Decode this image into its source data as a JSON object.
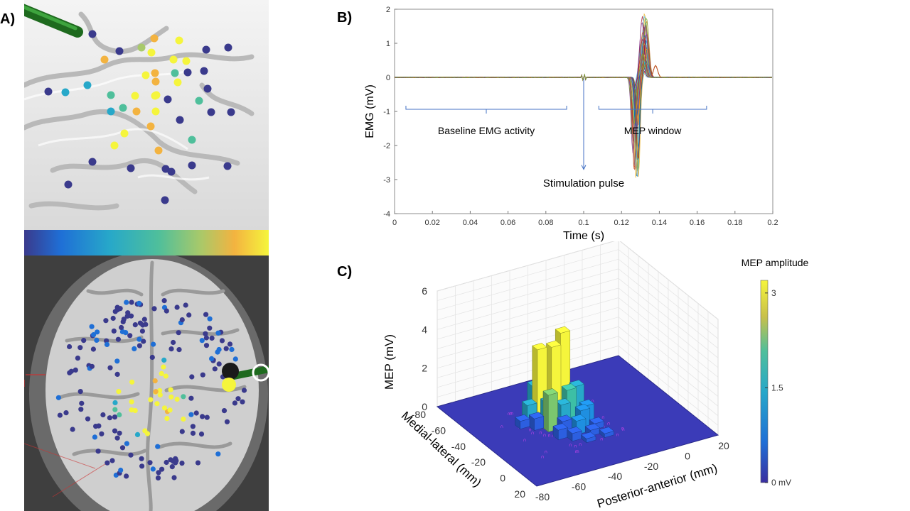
{
  "panels": {
    "a_label": "A)",
    "b_label": "B)",
    "c_label": "C)"
  },
  "panel_a": {
    "colors": {
      "background_top": "#f2f2f2",
      "background_bottom": "#3f3f3f",
      "colormap": [
        "#3a3a8c",
        "#1f6fd6",
        "#27a8c9",
        "#4fbf9b",
        "#a8c96a",
        "#f3b340",
        "#f5f53c"
      ],
      "coil_handle": "#2f7f2f"
    },
    "colormap_name": "parula"
  },
  "chart_data": [
    {
      "type": "line",
      "panel": "B",
      "title": "",
      "xlabel": "Time (s)",
      "ylabel": "EMG (mV)",
      "xlim": [
        0,
        0.2
      ],
      "ylim": [
        -4,
        2
      ],
      "xticks": [
        0,
        0.02,
        0.04,
        0.06,
        0.08,
        0.1,
        0.12,
        0.14,
        0.16,
        0.18,
        0.2
      ],
      "xtick_labels": [
        "0",
        "0.02",
        "0.04",
        "0.06",
        "0.08",
        "0.1",
        "0.12",
        "0.14",
        "0.16",
        "0.18",
        "0.2"
      ],
      "yticks": [
        -4,
        -3,
        -2,
        -1,
        0,
        1,
        2
      ],
      "ytick_labels": [
        "-4",
        "-3",
        "-2",
        "-1",
        "0",
        "1",
        "2"
      ],
      "annotations": {
        "baseline": {
          "text": "Baseline EMG activity",
          "x_range": [
            0.006,
            0.091
          ]
        },
        "mep": {
          "text": "MEP window",
          "x_range": [
            0.108,
            0.165
          ]
        },
        "stimulation": {
          "text": "Stimulation pulse",
          "x": 0.1,
          "y_from": 0,
          "y_to": -2.7
        }
      },
      "series_summary": {
        "n_traces": 40,
        "stim_time": 0.1,
        "mep_negative_peak_time": 0.1275,
        "mep_negative_peak_range": [
          -3.15,
          -0.25
        ],
        "mep_positive_peak_time": 0.132,
        "mep_positive_peak_range": [
          0.2,
          1.9
        ],
        "baseline_noise": 0.02
      },
      "colors": {
        "annotation": "#4472c4",
        "traces": [
          "#0072bd",
          "#d95319",
          "#edb120",
          "#7e2f8e",
          "#77ac30",
          "#4dbeee",
          "#a2142f"
        ]
      }
    },
    {
      "type": "bar3d",
      "panel": "C",
      "title": "MEP amplitude",
      "xlabel": "Medial-lateral (mm)",
      "ylabel": "Posterior-anterior (mm)",
      "zlabel": "MEP  (mV)",
      "xlim": [
        -80,
        20
      ],
      "ylim": [
        -80,
        20
      ],
      "zlim": [
        0,
        6
      ],
      "x_ticks": [
        "-80",
        "-60",
        "-40",
        "-20",
        "0",
        "20"
      ],
      "y_ticks": [
        "-80",
        "-60",
        "-40",
        "-20",
        "0",
        "20"
      ],
      "z_ticks": [
        "0",
        "2",
        "4",
        "6"
      ],
      "colorbar": {
        "ticks": [
          "3",
          "1.5",
          "0 mV"
        ],
        "tick_values": [
          3,
          1.5,
          0
        ],
        "range": [
          0,
          3.2
        ]
      },
      "bars": [
        {
          "x": -45,
          "y": -30,
          "h": 4.1
        },
        {
          "x": -45,
          "y": -35,
          "h": 3.5
        },
        {
          "x": -50,
          "y": -40,
          "h": 3.3
        },
        {
          "x": -30,
          "y": -45,
          "h": 1.9
        },
        {
          "x": -35,
          "y": -32,
          "h": 1.6
        },
        {
          "x": -40,
          "y": -25,
          "h": 1.4
        },
        {
          "x": -55,
          "y": -40,
          "h": 1.2
        },
        {
          "x": -30,
          "y": -38,
          "h": 1.2
        },
        {
          "x": -38,
          "y": -42,
          "h": 1.1
        },
        {
          "x": -42,
          "y": -50,
          "h": 1.0
        },
        {
          "x": -25,
          "y": -30,
          "h": 0.9
        },
        {
          "x": -30,
          "y": -25,
          "h": 0.8
        },
        {
          "x": -20,
          "y": -35,
          "h": 0.7
        },
        {
          "x": -25,
          "y": -40,
          "h": 0.6
        },
        {
          "x": -35,
          "y": -50,
          "h": 0.6
        },
        {
          "x": -20,
          "y": -45,
          "h": 0.5
        },
        {
          "x": -15,
          "y": -40,
          "h": 0.4
        },
        {
          "x": -40,
          "y": -55,
          "h": 0.4
        },
        {
          "x": -15,
          "y": -30,
          "h": 0.3
        },
        {
          "x": -20,
          "y": -25,
          "h": 0.3
        },
        {
          "x": -10,
          "y": -35,
          "h": 0.2
        },
        {
          "x": -10,
          "y": -25,
          "h": 0.2
        }
      ],
      "colors": {
        "floor": "#3b3bb8",
        "floor_markers": "#ff44ff"
      }
    }
  ]
}
